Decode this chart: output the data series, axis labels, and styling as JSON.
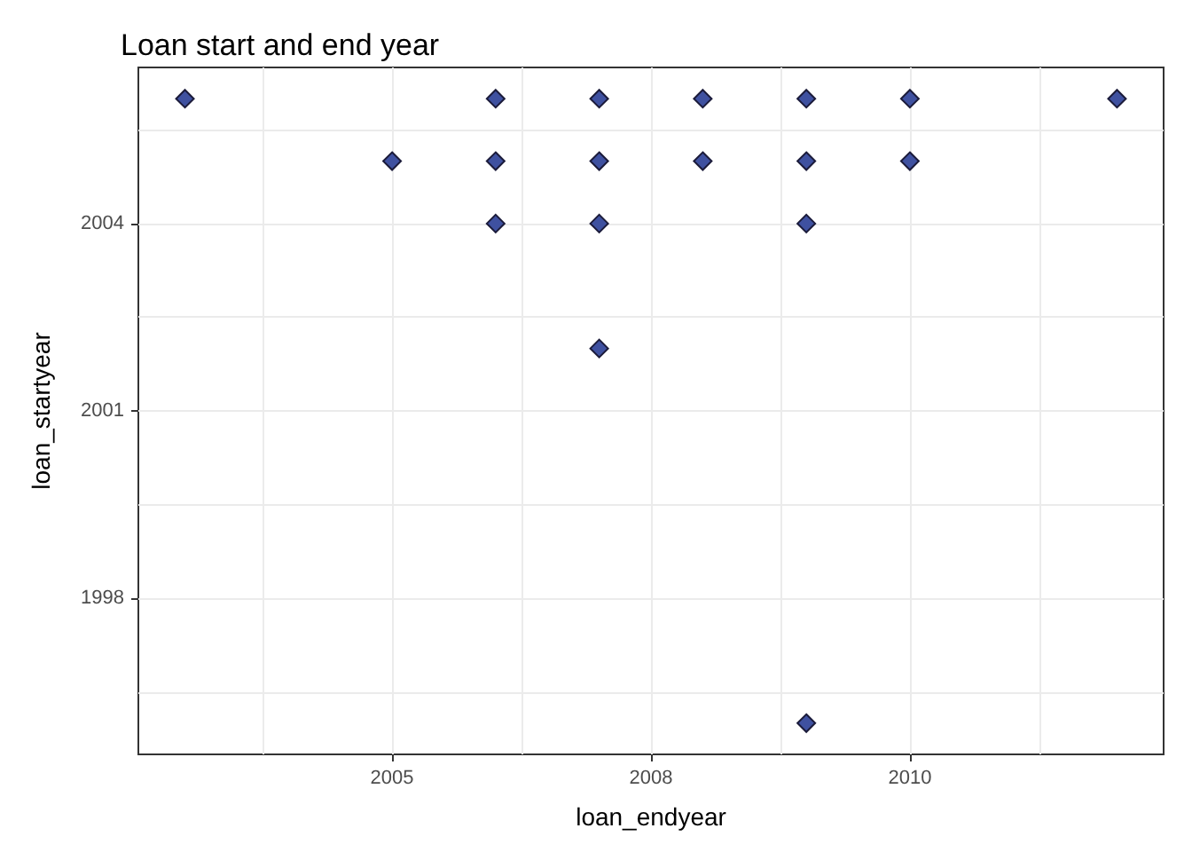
{
  "chart_data": {
    "type": "scatter",
    "title": "Loan start and end year",
    "xlabel": "loan_endyear",
    "ylabel": "loan_startyear",
    "x": [
      2003,
      2006,
      2007,
      2008,
      2009,
      2010,
      2012,
      2005,
      2006,
      2007,
      2008,
      2009,
      2010,
      2006,
      2007,
      2009,
      2007,
      2009
    ],
    "values": [
      2006,
      2006,
      2006,
      2006,
      2006,
      2006,
      2006,
      2005,
      2005,
      2005,
      2005,
      2005,
      2005,
      2004,
      2004,
      2004,
      2002,
      1996
    ],
    "color": "#3f51a0",
    "marker": "diamond",
    "xlim": [
      2002.55,
      2012.45
    ],
    "xticks": [
      2005,
      {
        "value": 2007.5,
        "label": "2008"
      },
      2010
    ],
    "ylim": [
      1995.5,
      2006.5
    ],
    "yticks": [
      1998,
      2001,
      2004
    ],
    "grid": true
  }
}
